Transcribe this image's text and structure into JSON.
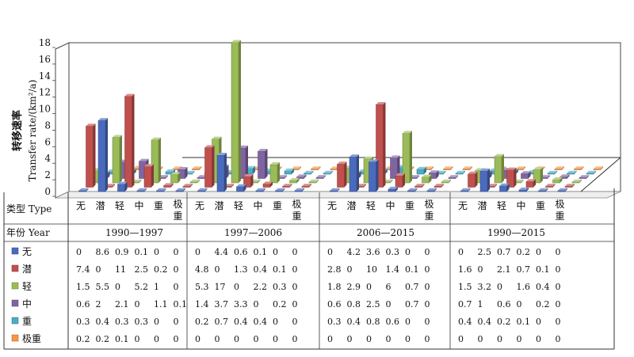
{
  "chart_data": {
    "type": "bar",
    "ylabel_cn": "转移速率",
    "ylabel_en": "Transfer rate/(km²/a)",
    "ylim": [
      0,
      18
    ],
    "yticks": [
      0,
      2,
      4,
      6,
      8,
      10,
      12,
      14,
      16,
      18
    ],
    "grid": false,
    "row_header": {
      "type_label": "类型 Type",
      "year_label": "年份 Year"
    },
    "categories": [
      "无",
      "潜",
      "轻",
      "中",
      "重",
      "极重"
    ],
    "periods": [
      "1990—1997",
      "1997—2006",
      "2006—2015",
      "1990—2015"
    ],
    "series": [
      {
        "name": "无",
        "color": "#4a6bbd",
        "values": [
          [
            0,
            8.6,
            0.9,
            0.1,
            0,
            0
          ],
          [
            0,
            4.4,
            0.6,
            0.1,
            0,
            0
          ],
          [
            0,
            4.2,
            3.6,
            0.3,
            0,
            0
          ],
          [
            0,
            2.5,
            0.7,
            0.2,
            0,
            0
          ]
        ]
      },
      {
        "name": "潜",
        "color": "#c0504d",
        "values": [
          [
            7.4,
            0,
            11,
            2.5,
            0.2,
            0
          ],
          [
            4.8,
            0,
            1.3,
            0.4,
            0.1,
            0
          ],
          [
            2.8,
            0,
            10,
            1.4,
            0.1,
            0
          ],
          [
            1.6,
            0,
            2.1,
            0.7,
            0.1,
            0
          ]
        ]
      },
      {
        "name": "轻",
        "color": "#9bbb59",
        "values": [
          [
            1.5,
            5.5,
            0,
            5.2,
            1,
            0
          ],
          [
            5.3,
            17,
            0,
            2.2,
            0.3,
            0
          ],
          [
            1.8,
            2.9,
            0,
            6,
            0.7,
            0
          ],
          [
            1.5,
            3.2,
            0,
            1.6,
            0.4,
            0
          ]
        ]
      },
      {
        "name": "中",
        "color": "#8064a2",
        "values": [
          [
            0.6,
            2,
            2.1,
            0,
            1.1,
            0.1
          ],
          [
            1.4,
            3.7,
            3.3,
            0,
            0.2,
            0
          ],
          [
            0.6,
            0.8,
            2.5,
            0,
            0.7,
            0
          ],
          [
            0.7,
            1,
            0.6,
            0,
            0.2,
            0
          ]
        ]
      },
      {
        "name": "重",
        "color": "#4bacc6",
        "values": [
          [
            0.3,
            0.4,
            0.3,
            0.3,
            0,
            0
          ],
          [
            0.2,
            0.7,
            0.4,
            0.4,
            0,
            0
          ],
          [
            0.3,
            0.4,
            0.8,
            0.6,
            0,
            0
          ],
          [
            0.4,
            0.4,
            0.2,
            0.1,
            0,
            0
          ]
        ]
      },
      {
        "name": "极重",
        "color": "#f79646",
        "values": [
          [
            0.2,
            0.2,
            0.1,
            0,
            0,
            0
          ],
          [
            0,
            0,
            0,
            0,
            0,
            0
          ],
          [
            0,
            0,
            0,
            0,
            0,
            0
          ],
          [
            0,
            0,
            0,
            0,
            0,
            0
          ]
        ]
      }
    ]
  }
}
